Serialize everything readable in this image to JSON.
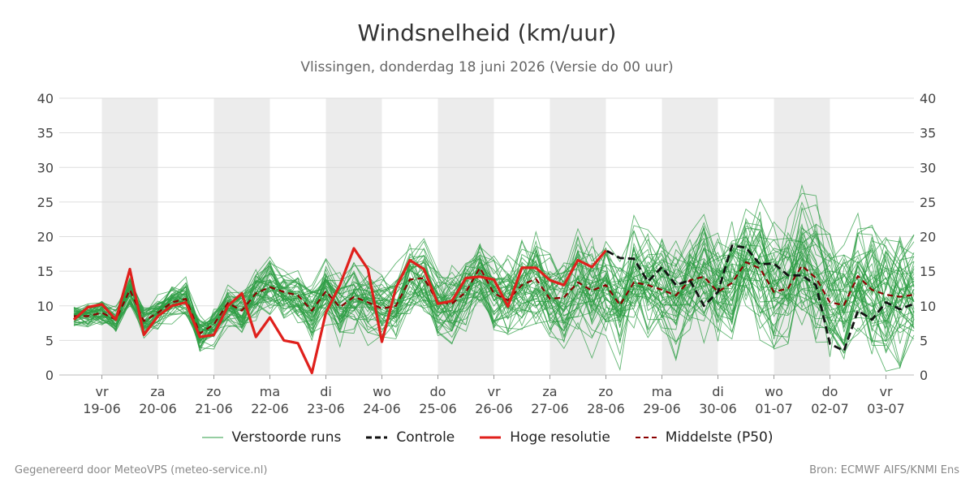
{
  "header": {
    "title": "Windsnelheid (km/uur)",
    "subtitle": "Vlissingen, donderdag 18 juni 2026 (Versie do 00 uur)"
  },
  "footer": {
    "left": "Gegenereerd door MeteoVPS (meteo-service.nl)",
    "right": "Bron: ECMWF AIFS/KNMI Ens"
  },
  "legend": {
    "members": "Verstoorde runs",
    "control": "Controle",
    "hires": "Hoge resolutie",
    "median": "Middelste (P50)"
  },
  "colors": {
    "members": "#2e9e44",
    "control": "#111111",
    "hires": "#e0201c",
    "median": "#8b0000",
    "band": "#ececec",
    "grid": "#dddddd"
  },
  "chart_data": {
    "type": "line",
    "title": "Windsnelheid (km/uur)",
    "subtitle": "Vlissingen, donderdag 18 juni 2026 (Versie do 00 uur)",
    "x_unit": "dagen",
    "x_range": [
      18.5,
      33.5
    ],
    "ylim": [
      0,
      40
    ],
    "y_ticks": [
      0,
      5,
      10,
      15,
      20,
      25,
      30,
      35,
      40
    ],
    "grid": true,
    "legend_position": "bottom",
    "x_ticks": [
      {
        "day": "vr",
        "date": "19-06"
      },
      {
        "day": "za",
        "date": "20-06"
      },
      {
        "day": "zo",
        "date": "21-06"
      },
      {
        "day": "ma",
        "date": "22-06"
      },
      {
        "day": "di",
        "date": "23-06"
      },
      {
        "day": "wo",
        "date": "24-06"
      },
      {
        "day": "do",
        "date": "25-06"
      },
      {
        "day": "vr",
        "date": "26-06"
      },
      {
        "day": "za",
        "date": "27-06"
      },
      {
        "day": "zo",
        "date": "28-06"
      },
      {
        "day": "ma",
        "date": "29-06"
      },
      {
        "day": "di",
        "date": "30-06"
      },
      {
        "day": "wo",
        "date": "01-07"
      },
      {
        "day": "do",
        "date": "02-07"
      },
      {
        "day": "vr",
        "date": "03-07"
      }
    ],
    "shaded_days": [
      "19-06",
      "21-06",
      "23-06",
      "25-06",
      "27-06",
      "29-06",
      "01-07"
    ],
    "member_count": 50,
    "series": [
      {
        "name": "Hoge resolutie",
        "style": "solid",
        "x": [
          18.5,
          18.75,
          19,
          19.25,
          19.5,
          19.75,
          20,
          20.25,
          20.5,
          20.75,
          21,
          21.25,
          21.5,
          21.75,
          22,
          22.25,
          22.5,
          22.75,
          23,
          23.25,
          23.5,
          23.75,
          24,
          24.25,
          24.5,
          24.75,
          25,
          25.25,
          25.5,
          25.75,
          26,
          26.25,
          26.5,
          26.75,
          27,
          27.25,
          27.5,
          27.75,
          28
        ],
        "y": [
          8.0,
          9.8,
          10.2,
          8.0,
          15.3,
          5.8,
          8.5,
          10.0,
          10.5,
          5.5,
          5.8,
          10.0,
          11.8,
          5.5,
          8.3,
          5.0,
          4.6,
          0.3,
          9.0,
          13.0,
          18.3,
          15.3,
          4.8,
          12.6,
          16.6,
          15.3,
          10.3,
          10.7,
          14.0,
          14.2,
          13.8,
          9.9,
          15.5,
          15.5,
          13.7,
          13.0,
          16.6,
          15.6,
          18.0
        ]
      },
      {
        "name": "Controle",
        "style": "dashed",
        "x": [
          18.5,
          18.75,
          19,
          19.25,
          19.5,
          19.75,
          20,
          20.25,
          20.5,
          20.75,
          21,
          21.25,
          21.5,
          21.75,
          22,
          22.25,
          22.5,
          22.75,
          23,
          23.25,
          23.5,
          23.75,
          24,
          24.25,
          24.5,
          24.75,
          25,
          25.25,
          25.5,
          25.75,
          26,
          26.25,
          26.5,
          26.75,
          27,
          27.25,
          27.5,
          27.75,
          28,
          28.25,
          28.5,
          28.75,
          29,
          29.25,
          29.5,
          29.75,
          30,
          30.25,
          30.5,
          30.75,
          31,
          31.25,
          31.5,
          31.75,
          32,
          32.25,
          32.5,
          32.75,
          33,
          33.25,
          33.5
        ],
        "y": [
          8.0,
          9.8,
          10.2,
          8.0,
          15.3,
          5.8,
          8.5,
          10.0,
          10.5,
          5.5,
          5.8,
          10.0,
          11.8,
          5.5,
          8.3,
          5.0,
          4.6,
          0.3,
          9.0,
          13.0,
          18.3,
          15.3,
          4.8,
          12.6,
          16.6,
          15.3,
          10.3,
          10.7,
          14.0,
          14.2,
          13.8,
          9.9,
          15.5,
          15.5,
          13.7,
          13.0,
          16.6,
          15.6,
          18.0,
          16.9,
          16.8,
          13.5,
          15.6,
          13.0,
          13.7,
          10.0,
          12.0,
          18.7,
          18.4,
          16.0,
          16.1,
          14.4,
          14.4,
          13.0,
          4.5,
          3.5,
          9.3,
          8.0,
          10.5,
          9.5,
          10.3
        ]
      },
      {
        "name": "Middelste (P50)",
        "style": "dashed",
        "x": [
          18.5,
          18.75,
          19,
          19.25,
          19.5,
          19.75,
          20,
          20.25,
          20.5,
          20.75,
          21,
          21.25,
          21.5,
          21.75,
          22,
          22.25,
          22.5,
          22.75,
          23,
          23.25,
          23.5,
          23.75,
          24,
          24.25,
          24.5,
          24.75,
          25,
          25.25,
          25.5,
          25.75,
          26,
          26.25,
          26.5,
          26.75,
          27,
          27.25,
          27.5,
          27.75,
          28,
          28.25,
          28.5,
          28.75,
          29,
          29.25,
          29.5,
          29.75,
          30,
          30.25,
          30.5,
          30.75,
          31,
          31.25,
          31.5,
          31.75,
          32,
          32.25,
          32.5,
          32.75,
          33,
          33.25,
          33.5
        ],
        "y": [
          8.5,
          8.5,
          9.0,
          8.0,
          12.3,
          7.8,
          9.0,
          10.5,
          11.0,
          6.0,
          7.3,
          10.4,
          9.3,
          11.8,
          12.7,
          12.0,
          11.5,
          9.3,
          12.1,
          9.8,
          11.3,
          10.5,
          9.6,
          10.0,
          13.8,
          14.0,
          10.5,
          10.3,
          12.0,
          15.5,
          11.8,
          10.8,
          13.0,
          13.9,
          11.0,
          11.2,
          13.4,
          12.2,
          13.0,
          10.1,
          13.4,
          13.0,
          12.3,
          11.5,
          13.7,
          14.2,
          12.0,
          13.3,
          16.3,
          15.4,
          12.0,
          12.5,
          15.8,
          14.0,
          10.5,
          10.1,
          14.3,
          12.3,
          11.6,
          11.3,
          11.6
        ]
      }
    ]
  }
}
